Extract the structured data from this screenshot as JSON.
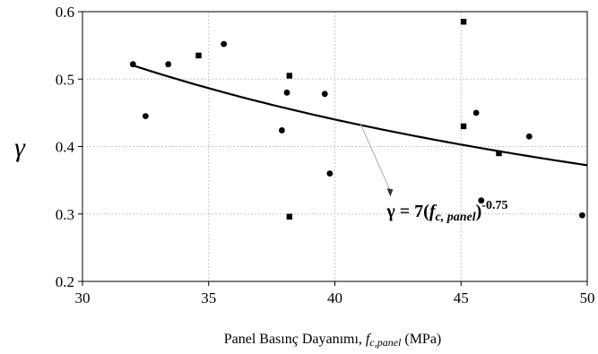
{
  "chart_data": {
    "type": "scatter",
    "title": "",
    "xlabel": {
      "prefix": "Panel Basınç Dayanımı, ",
      "var_main": "f",
      "var_sub": "c,panel",
      "suffix": " (MPa)"
    },
    "ylabel": "γ",
    "xlim": [
      30,
      50
    ],
    "ylim": [
      0.2,
      0.6
    ],
    "x_ticks": [
      "30",
      "35",
      "40",
      "45",
      "50"
    ],
    "y_ticks": [
      "0.2",
      "0.3",
      "0.4",
      "0.5",
      "0.6"
    ],
    "grid": true,
    "series": [
      {
        "marker": "circle",
        "points": [
          [
            32.0,
            0.522
          ],
          [
            32.5,
            0.445
          ],
          [
            33.4,
            0.522
          ],
          [
            35.6,
            0.552
          ],
          [
            37.9,
            0.424
          ],
          [
            38.1,
            0.48
          ],
          [
            39.6,
            0.478
          ],
          [
            39.8,
            0.36
          ],
          [
            45.6,
            0.45
          ],
          [
            45.8,
            0.32
          ],
          [
            47.7,
            0.415
          ],
          [
            49.8,
            0.298
          ]
        ]
      },
      {
        "marker": "square",
        "points": [
          [
            34.6,
            0.535
          ],
          [
            38.2,
            0.505
          ],
          [
            38.2,
            0.296
          ],
          [
            45.1,
            0.585
          ],
          [
            45.1,
            0.43
          ],
          [
            46.5,
            0.39
          ]
        ]
      }
    ],
    "fit_curve": {
      "coefficient": 7,
      "exponent": -0.75,
      "x_range": [
        32,
        50
      ]
    },
    "annotation": {
      "gamma": "γ",
      "equals": " = 7(",
      "var_main": "f",
      "var_sub": "c, panel",
      "close": ")",
      "superscript": "-0.75",
      "arrow_to": [
        41.0,
        0.435
      ],
      "text_at": [
        42.2,
        0.31
      ]
    }
  }
}
